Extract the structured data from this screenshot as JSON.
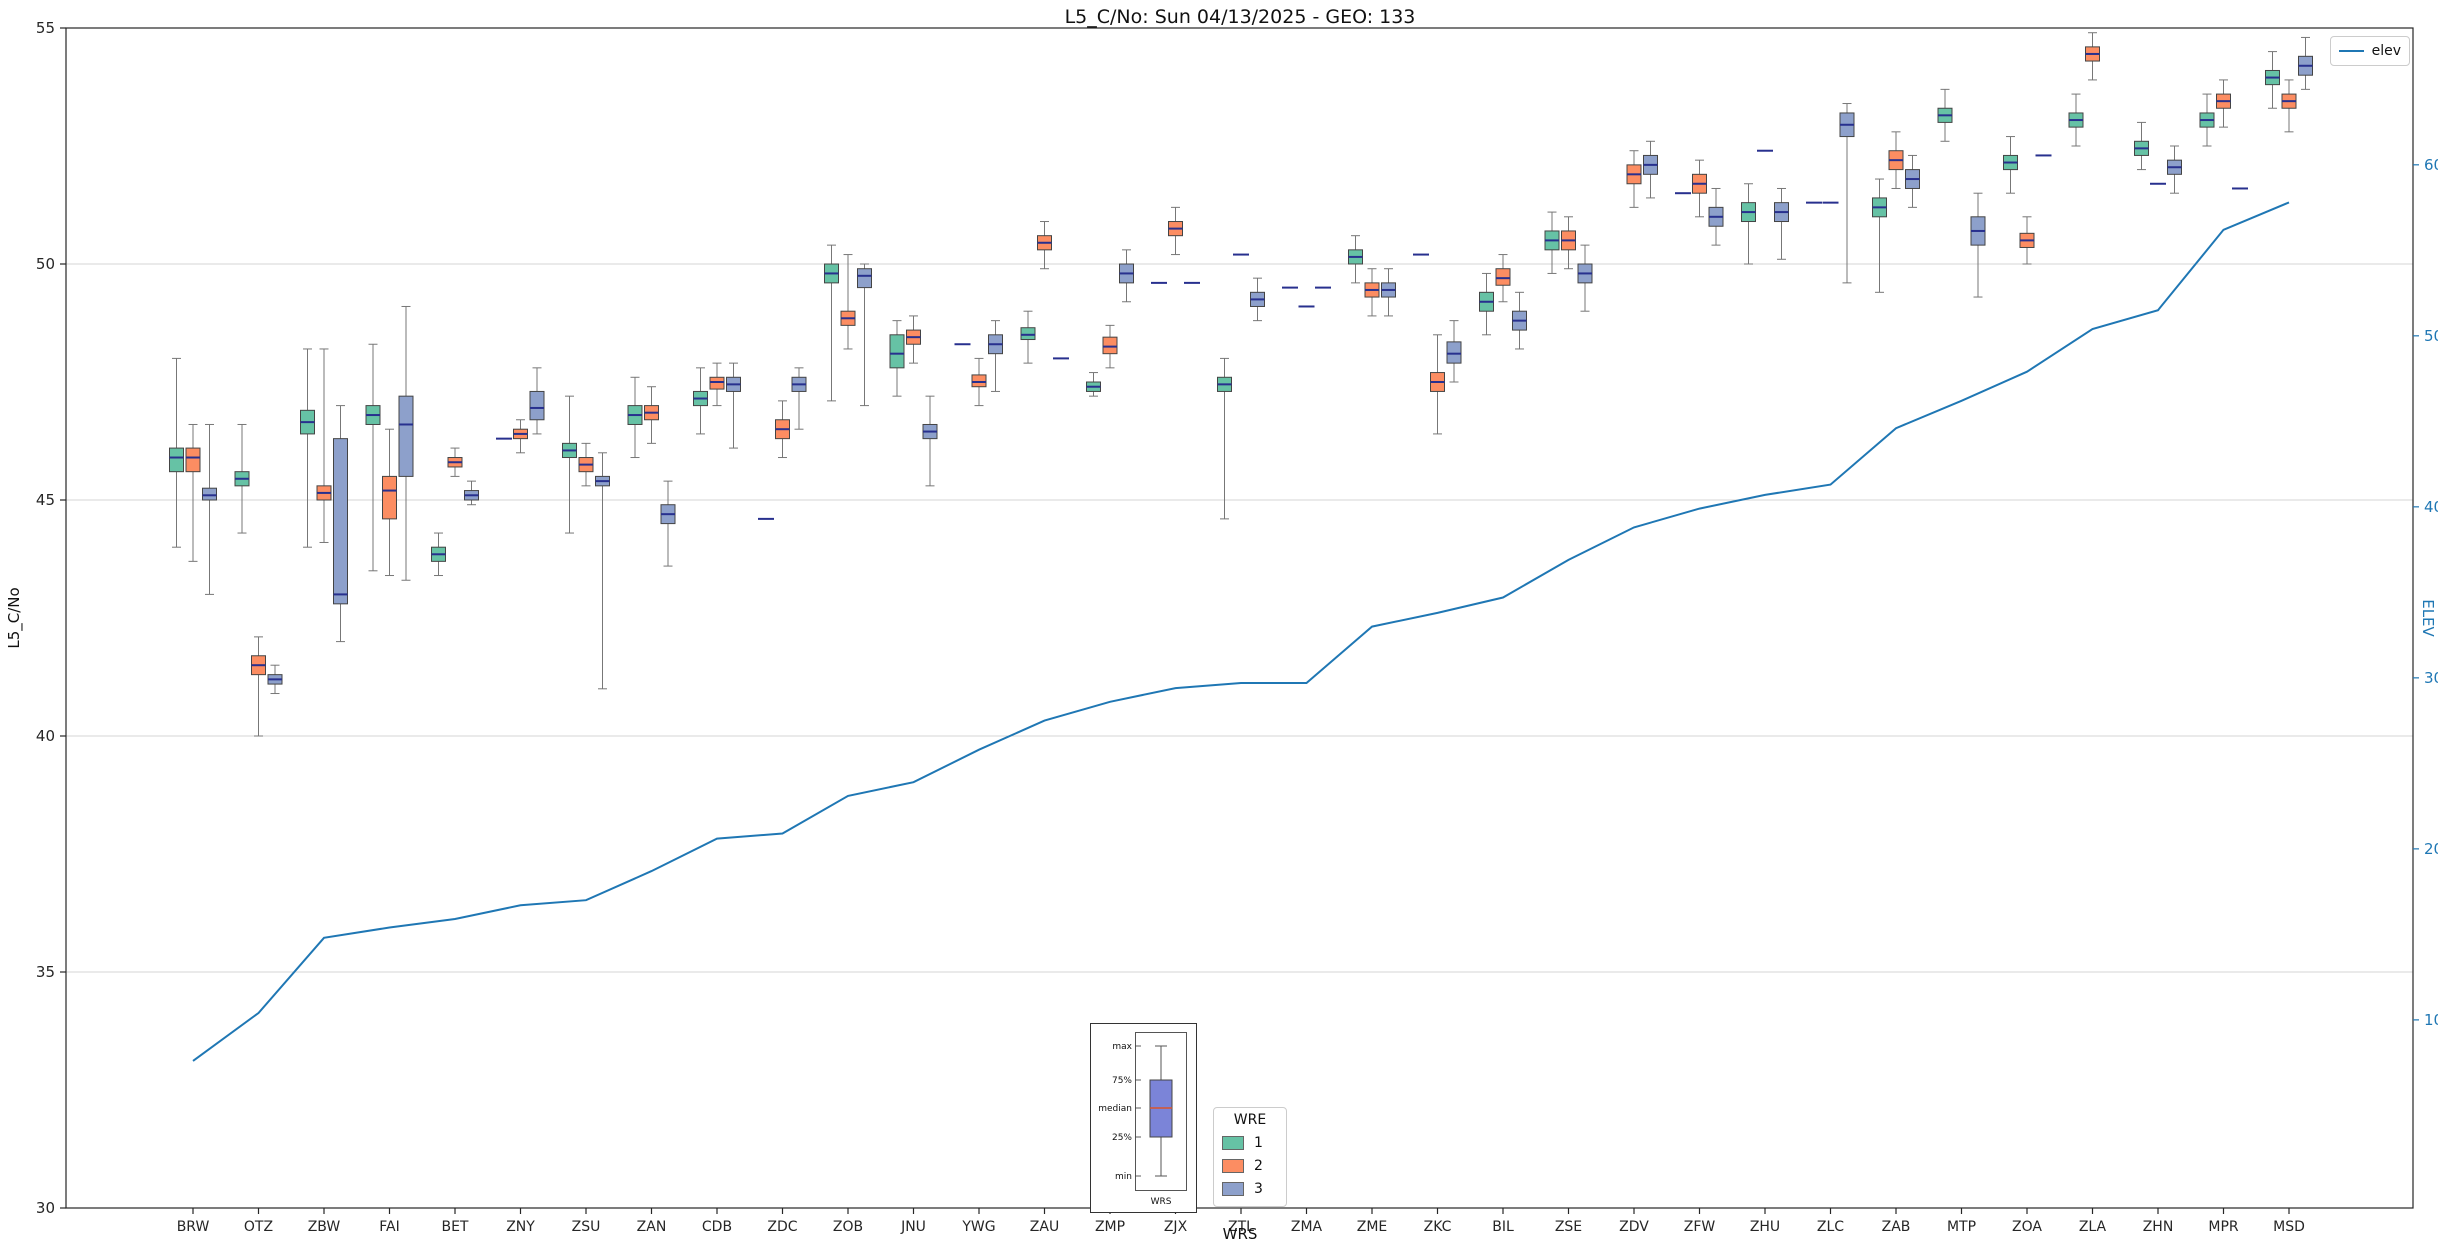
{
  "chart_data": {
    "type": "boxplot",
    "title": "L5_C/No: Sun 04/13/2025 - GEO: 133",
    "xlabel": "WRS",
    "ylabel_left": "L5_C/No",
    "ylabel_right": "ELEV",
    "ylim_left": [
      30,
      55
    ],
    "yticks_left": [
      30,
      35,
      40,
      45,
      50,
      55
    ],
    "ylim_right": [
      -1,
      68
    ],
    "yticks_right": [
      10,
      20,
      30,
      40,
      50,
      60
    ],
    "grid": "horizontal",
    "legend": {
      "title": "WRE"
    },
    "line_legend": {
      "label": "elev",
      "color": "#1f77b4"
    },
    "categories": [
      "BRW",
      "OTZ",
      "ZBW",
      "FAI",
      "BET",
      "ZNY",
      "ZSU",
      "ZAN",
      "CDB",
      "ZDC",
      "ZOB",
      "JNU",
      "YWG",
      "ZAU",
      "ZMP",
      "ZJX",
      "ZTL",
      "ZMA",
      "ZME",
      "ZKC",
      "BIL",
      "ZSE",
      "ZDV",
      "ZFW",
      "ZHU",
      "ZLC",
      "ZAB",
      "MTP",
      "ZOA",
      "ZLA",
      "ZHN",
      "MPR",
      "MSD"
    ],
    "series": [
      {
        "name": "1",
        "color": "#66c2a5",
        "boxes": [
          [
            44.0,
            45.6,
            45.9,
            46.1,
            48.0
          ],
          [
            44.3,
            45.3,
            45.45,
            45.6,
            46.6
          ],
          [
            44.0,
            46.4,
            46.65,
            46.9,
            48.2
          ],
          [
            43.5,
            46.6,
            46.8,
            47.0,
            48.3
          ],
          [
            43.4,
            43.7,
            43.85,
            44.0,
            44.3
          ],
          [
            46.3
          ],
          [
            44.3,
            45.9,
            46.05,
            46.2,
            47.2
          ],
          [
            45.9,
            46.6,
            46.8,
            47.0,
            47.6
          ],
          [
            46.4,
            47.0,
            47.15,
            47.3,
            47.8
          ],
          [
            44.6
          ],
          [
            47.1,
            49.6,
            49.8,
            50.0,
            50.4
          ],
          [
            47.2,
            47.8,
            48.1,
            48.5,
            48.8
          ],
          [
            48.3
          ],
          [
            47.9,
            48.4,
            48.5,
            48.65,
            49.0
          ],
          [
            47.2,
            47.3,
            47.4,
            47.5,
            47.7
          ],
          [
            49.6
          ],
          [
            44.6,
            47.3,
            47.45,
            47.6,
            48.0
          ],
          [
            49.5
          ],
          [
            49.6,
            50.0,
            50.15,
            50.3,
            50.6
          ],
          [
            50.2
          ],
          [
            48.5,
            49.0,
            49.2,
            49.4,
            49.8
          ],
          [
            49.8,
            50.3,
            50.5,
            50.7,
            51.1
          ],
          null,
          [
            51.5
          ],
          [
            50.0,
            50.9,
            51.1,
            51.3,
            51.7
          ],
          [
            51.3
          ],
          [
            49.4,
            51.0,
            51.2,
            51.4,
            51.8
          ],
          [
            52.6,
            53.0,
            53.15,
            53.3,
            53.7
          ],
          [
            51.5,
            52.0,
            52.15,
            52.3,
            52.7
          ],
          [
            52.5,
            52.9,
            53.05,
            53.2,
            53.6
          ],
          [
            52.0,
            52.3,
            52.45,
            52.6,
            53.0
          ],
          [
            52.5,
            52.9,
            53.05,
            53.2,
            53.6
          ],
          [
            53.3,
            53.8,
            53.95,
            54.1,
            54.5
          ]
        ]
      },
      {
        "name": "2",
        "color": "#fc8d62",
        "boxes": [
          [
            43.7,
            45.6,
            45.9,
            46.1,
            46.6
          ],
          [
            40.0,
            41.3,
            41.5,
            41.7,
            42.1
          ],
          [
            44.1,
            45.0,
            45.15,
            45.3,
            48.2
          ],
          [
            43.4,
            44.6,
            45.2,
            45.5,
            46.5
          ],
          [
            45.5,
            45.7,
            45.8,
            45.9,
            46.1
          ],
          [
            46.0,
            46.3,
            46.4,
            46.5,
            46.7
          ],
          [
            45.3,
            45.6,
            45.75,
            45.9,
            46.2
          ],
          [
            46.2,
            46.7,
            46.85,
            47.0,
            47.4
          ],
          [
            47.0,
            47.35,
            47.5,
            47.6,
            47.9
          ],
          [
            45.9,
            46.3,
            46.5,
            46.7,
            47.1
          ],
          [
            48.2,
            48.7,
            48.85,
            49.0,
            50.2
          ],
          [
            47.9,
            48.3,
            48.45,
            48.6,
            48.9
          ],
          [
            47.0,
            47.4,
            47.5,
            47.65,
            48.0
          ],
          [
            49.9,
            50.3,
            50.45,
            50.6,
            50.9
          ],
          [
            47.8,
            48.1,
            48.25,
            48.45,
            48.7
          ],
          [
            50.2,
            50.6,
            50.75,
            50.9,
            51.2
          ],
          [
            50.2
          ],
          [
            49.1
          ],
          [
            48.9,
            49.3,
            49.45,
            49.6,
            49.9
          ],
          [
            46.4,
            47.3,
            47.5,
            47.7,
            48.5
          ],
          [
            49.2,
            49.55,
            49.7,
            49.9,
            50.2
          ],
          [
            49.9,
            50.3,
            50.5,
            50.7,
            51.0
          ],
          [
            51.2,
            51.7,
            51.9,
            52.1,
            52.4
          ],
          [
            51.0,
            51.5,
            51.7,
            51.9,
            52.2
          ],
          [
            52.4
          ],
          [
            51.3
          ],
          [
            51.6,
            52.0,
            52.2,
            52.4,
            52.8
          ],
          null,
          [
            50.0,
            50.35,
            50.5,
            50.65,
            51.0
          ],
          [
            53.9,
            54.3,
            54.45,
            54.6,
            54.9
          ],
          [
            51.7
          ],
          [
            52.9,
            53.3,
            53.45,
            53.6,
            53.9
          ],
          [
            52.8,
            53.3,
            53.45,
            53.6,
            53.9
          ]
        ]
      },
      {
        "name": "3",
        "color": "#8da0cb",
        "boxes": [
          [
            43.0,
            45.0,
            45.1,
            45.25,
            46.6
          ],
          [
            40.9,
            41.1,
            41.2,
            41.3,
            41.5
          ],
          [
            42.0,
            42.8,
            43.0,
            46.3,
            47.0
          ],
          [
            43.3,
            45.5,
            46.6,
            47.2,
            49.1
          ],
          [
            44.9,
            45.0,
            45.1,
            45.2,
            45.4
          ],
          [
            46.4,
            46.7,
            46.95,
            47.3,
            47.8
          ],
          [
            41.0,
            45.3,
            45.4,
            45.5,
            46.0
          ],
          [
            43.6,
            44.5,
            44.7,
            44.9,
            45.4
          ],
          [
            46.1,
            47.3,
            47.45,
            47.6,
            47.9
          ],
          [
            46.5,
            47.3,
            47.45,
            47.6,
            47.8
          ],
          [
            47.0,
            49.5,
            49.75,
            49.9,
            50.0
          ],
          [
            45.3,
            46.3,
            46.45,
            46.6,
            47.2
          ],
          [
            47.3,
            48.1,
            48.3,
            48.5,
            48.8
          ],
          [
            48.0
          ],
          [
            49.2,
            49.6,
            49.8,
            50.0,
            50.3
          ],
          [
            49.6
          ],
          [
            48.8,
            49.1,
            49.25,
            49.4,
            49.7
          ],
          [
            49.5
          ],
          [
            48.9,
            49.3,
            49.45,
            49.6,
            49.9
          ],
          [
            47.5,
            47.9,
            48.1,
            48.35,
            48.8
          ],
          [
            48.2,
            48.6,
            48.8,
            49.0,
            49.4
          ],
          [
            49.0,
            49.6,
            49.8,
            50.0,
            50.4
          ],
          [
            51.4,
            51.9,
            52.1,
            52.3,
            52.6
          ],
          [
            50.4,
            50.8,
            51.0,
            51.2,
            51.6
          ],
          [
            50.1,
            50.9,
            51.1,
            51.3,
            51.6
          ],
          [
            49.6,
            52.7,
            52.95,
            53.2,
            53.4
          ],
          [
            51.2,
            51.6,
            51.8,
            52.0,
            52.3
          ],
          [
            49.3,
            50.4,
            50.7,
            51.0,
            51.5
          ],
          [
            52.3
          ],
          null,
          [
            51.5,
            51.9,
            52.05,
            52.2,
            52.5
          ],
          [
            51.6
          ],
          [
            53.7,
            54.0,
            54.2,
            54.4,
            54.8
          ]
        ]
      }
    ],
    "elev": {
      "name": "elev",
      "axis": "right",
      "color": "#1f77b4",
      "values": [
        7.6,
        10.4,
        14.8,
        15.4,
        15.9,
        16.7,
        17.0,
        18.7,
        20.6,
        20.9,
        23.1,
        23.9,
        25.8,
        27.5,
        28.6,
        29.4,
        29.7,
        29.7,
        33.0,
        33.8,
        34.7,
        36.9,
        38.8,
        39.9,
        40.7,
        41.3,
        44.6,
        46.2,
        47.9,
        50.4,
        51.5,
        56.2,
        57.8
      ]
    },
    "inset": {
      "labels": [
        "max",
        "75%",
        "median",
        "25%",
        "min"
      ],
      "xlabel": "WRS",
      "box_color": "#7b84d8",
      "median_color": "#d9542b"
    },
    "styles": {
      "median_color": "#28308e",
      "edge_color": "#444444",
      "whisker_color": "#777777",
      "grid_color": "#d4d4d4",
      "tick_color": "#262626",
      "right_axis_color": "#1f77b4"
    }
  }
}
